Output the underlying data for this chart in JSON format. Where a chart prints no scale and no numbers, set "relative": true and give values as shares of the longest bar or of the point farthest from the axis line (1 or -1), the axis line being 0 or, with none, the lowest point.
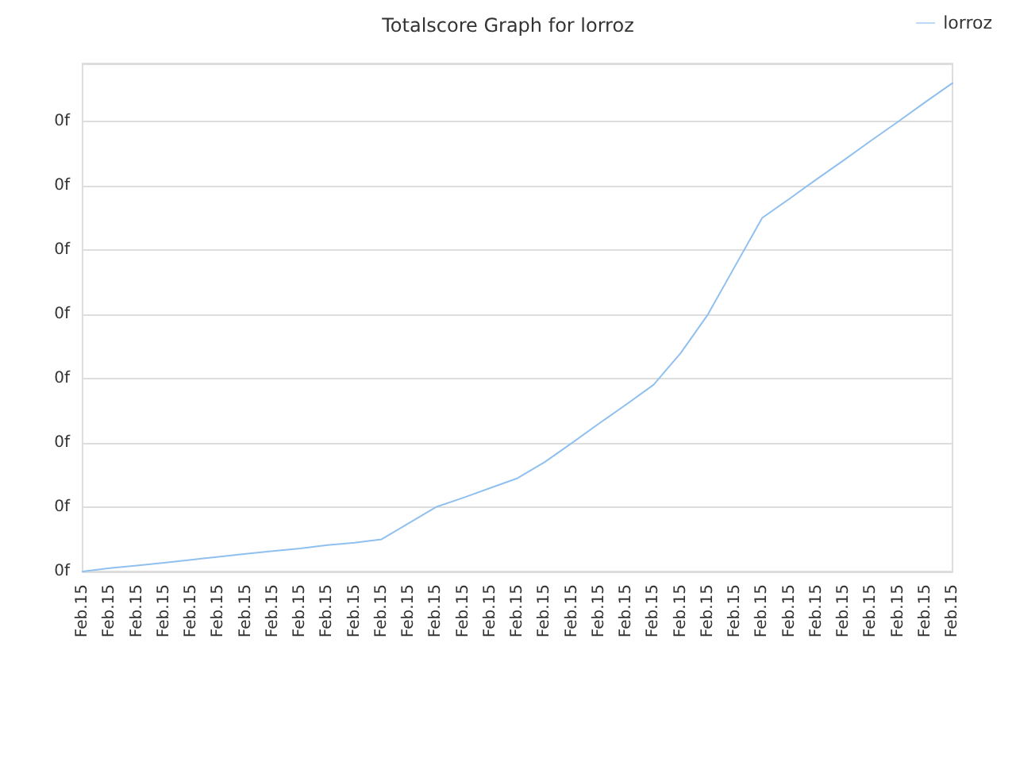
{
  "chart_data": {
    "type": "line",
    "title": "Totalscore Graph for lorroz",
    "categories": [
      "Feb.15",
      "Feb.15",
      "Feb.15",
      "Feb.15",
      "Feb.15",
      "Feb.15",
      "Feb.15",
      "Feb.15",
      "Feb.15",
      "Feb.15",
      "Feb.15",
      "Feb.15",
      "Feb.15",
      "Feb.15",
      "Feb.15",
      "Feb.15",
      "Feb.15",
      "Feb.15",
      "Feb.15",
      "Feb.15",
      "Feb.15",
      "Feb.15",
      "Feb.15",
      "Feb.15",
      "Feb.15",
      "Feb.15",
      "Feb.15",
      "Feb.15",
      "Feb.15",
      "Feb.15",
      "Feb.15",
      "Feb.15",
      "Feb.15"
    ],
    "series": [
      {
        "name": "lorroz",
        "color": "#90c0f0",
        "values": [
          0,
          0.007,
          0.012,
          0.018,
          0.024,
          0.03,
          0.036,
          0.042,
          0.047,
          0.054,
          0.059,
          0.066,
          0.099,
          0.132,
          0.151,
          0.171,
          0.191,
          0.224,
          0.263,
          0.303,
          0.342,
          0.382,
          0.447,
          0.526,
          0.625,
          0.724,
          0.763,
          0.803,
          0.842,
          0.882,
          0.921,
          0.961,
          1
        ]
      }
    ],
    "relative": true,
    "annotations": [
      "0f",
      "0f",
      "0f",
      "0f",
      "0f",
      "0f",
      "0f",
      "0f"
    ],
    "grid": "y",
    "legend": "top right",
    "marker": "none",
    "line_style": "solid"
  }
}
